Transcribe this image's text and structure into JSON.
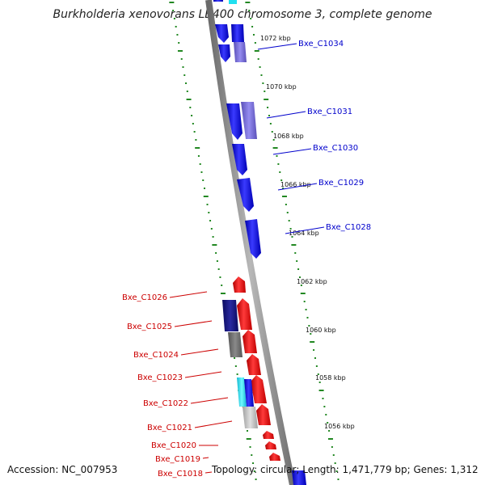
{
  "title": "Burkholderia xenovorans LB400 chromosome 3, complete genome",
  "accession": "Accession: NC_007953",
  "footer": "Topology: circular; Length: 1,471,779 bp; Genes: 1,312",
  "scale_labels": [
    "1072 kbp",
    "1070 kbp",
    "1068 kbp",
    "1066 kbp",
    "1064 kbp",
    "1062 kbp",
    "1060 kbp",
    "1058 kbp",
    "1056 kbp"
  ],
  "genes_forward": [
    "Bxe_C1034",
    "Bxe_C1031",
    "Bxe_C1030",
    "Bxe_C1029",
    "Bxe_C1028"
  ],
  "genes_reverse": [
    "Bxe_C1026",
    "Bxe_C1025",
    "Bxe_C1024",
    "Bxe_C1023",
    "Bxe_C1022",
    "Bxe_C1021",
    "Bxe_C1020",
    "Bxe_C1019",
    "Bxe_C1018"
  ],
  "colors": {
    "backbone": "#8a8a8a",
    "forward_gene": "#1a1aee",
    "reverse_gene": "#ee1111",
    "forward_label": "#0000cc",
    "reverse_label": "#cc0000",
    "ticks": "#228822",
    "feature_navy": "#141480",
    "feature_purple": "#7a70d8",
    "feature_gray": "#707070",
    "feature_cyan": "#20e0f0"
  }
}
